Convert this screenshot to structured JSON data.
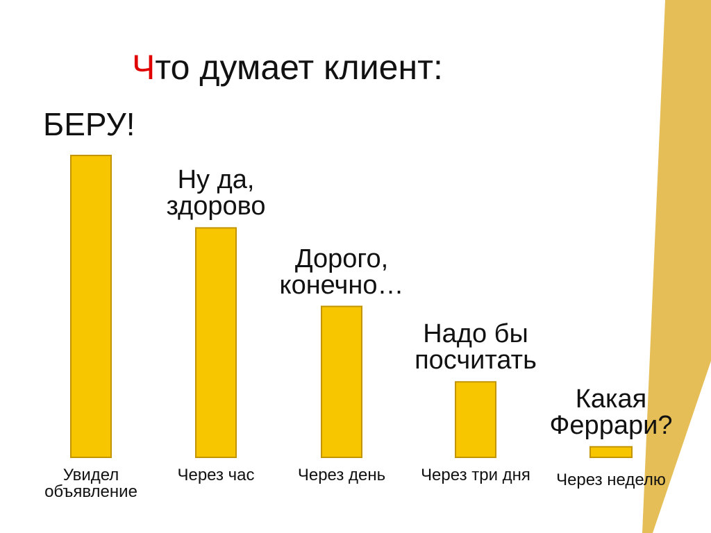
{
  "chart_data": {
    "type": "bar",
    "title": "Что думает клиент:",
    "categories": [
      "Увидел объявление",
      "Через час",
      "Через день",
      "Через три дня",
      "Через неделю"
    ],
    "values": [
      100,
      76,
      50,
      25,
      3.5
    ],
    "annotations": [
      "БЕРУ!",
      "Ну да, здорово",
      "Дорого, конечно…",
      "Надо бы посчитать",
      "Какая Феррари?"
    ],
    "color": "#f7c600"
  }
}
